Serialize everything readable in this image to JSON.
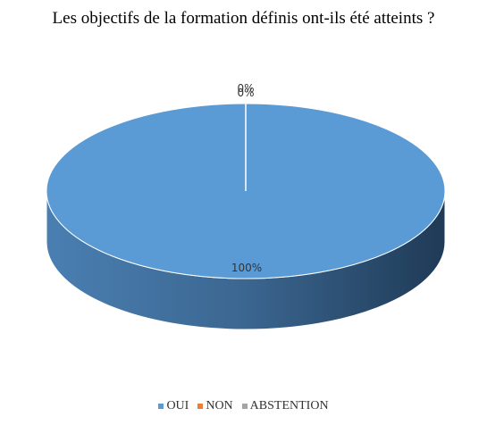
{
  "chart_data": {
    "type": "pie",
    "title": "Les objectifs de la formation définis ont-ils été atteints ?",
    "categories": [
      "OUI",
      "NON",
      "ABSTENTION"
    ],
    "values": [
      100,
      0,
      0
    ],
    "data_labels": [
      "100%",
      "0%",
      "0%"
    ],
    "colors": [
      "#5b9bd5",
      "#ed7d31",
      "#a5a5a5"
    ],
    "legend_position": "bottom",
    "style": "3d"
  }
}
